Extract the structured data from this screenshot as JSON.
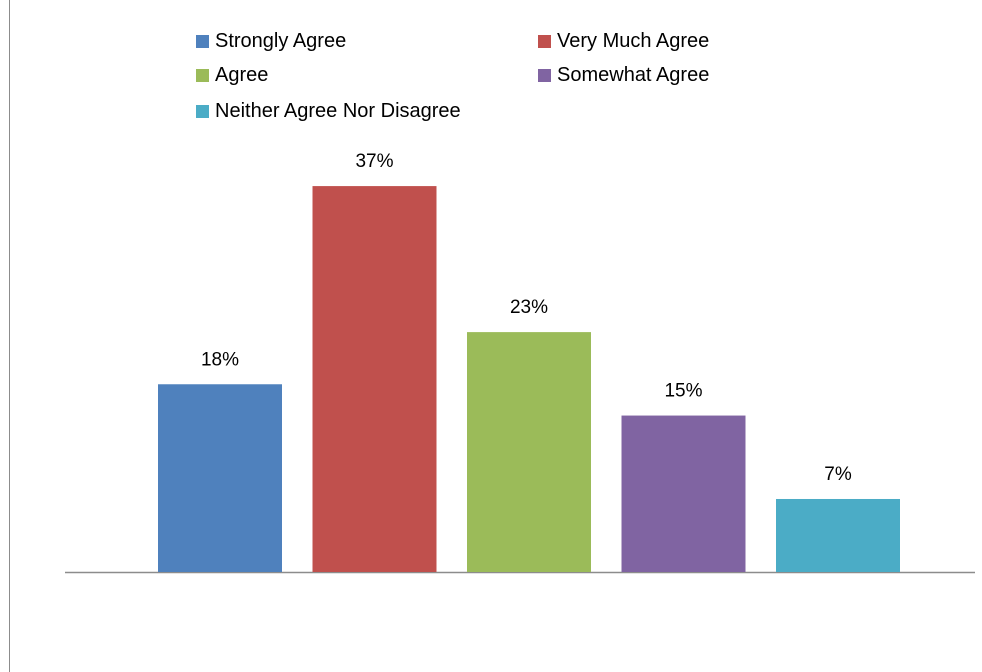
{
  "chart_data": {
    "type": "bar",
    "title": "",
    "xlabel": "",
    "ylabel": "",
    "ylim": [
      0,
      40
    ],
    "grid": false,
    "legend_position": "top",
    "categories": [
      "Strongly Agree",
      "Very Much Agree",
      "Agree",
      "Somewhat Agree",
      "Neither Agree Nor Disagree"
    ],
    "values": [
      18,
      37,
      23,
      15,
      7
    ],
    "data_labels": [
      "18%",
      "37%",
      "23%",
      "15%",
      "7%"
    ],
    "colors": [
      "#4F81BD",
      "#C0504D",
      "#9BBB59",
      "#8064A2",
      "#4BACC6"
    ]
  }
}
